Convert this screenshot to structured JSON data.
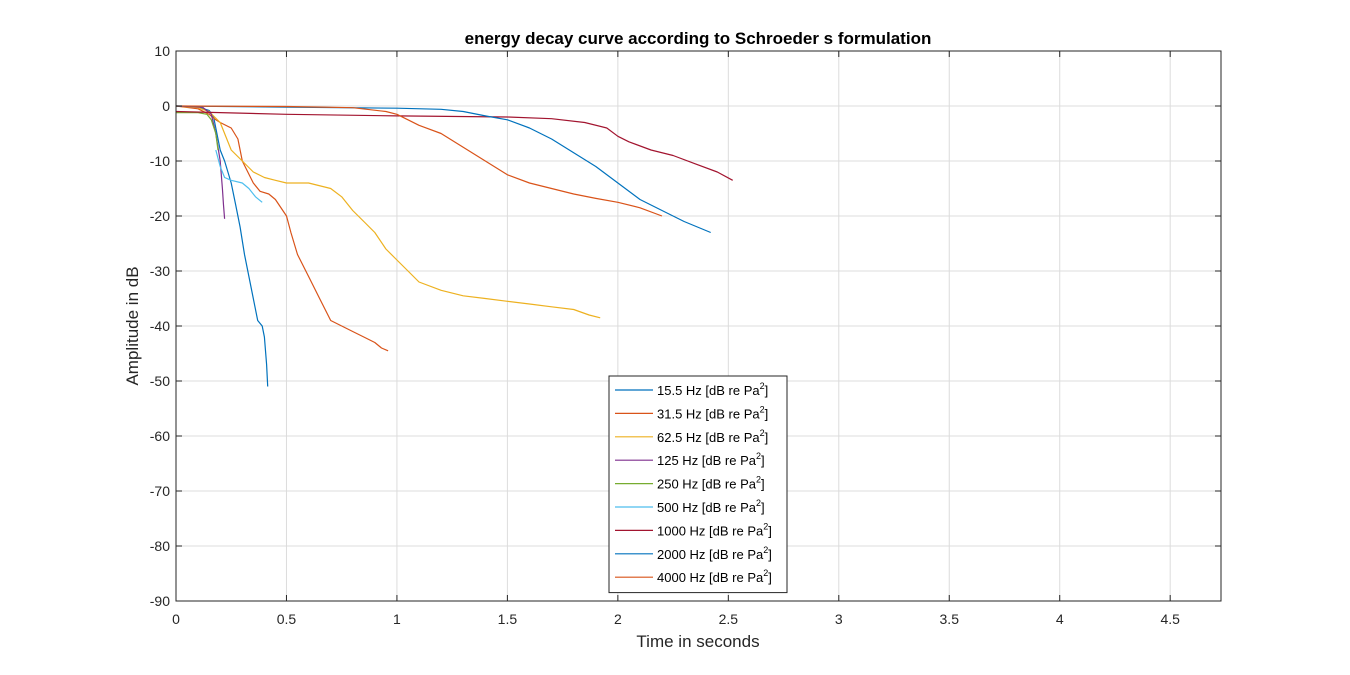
{
  "chart_data": {
    "type": "line",
    "title": "energy decay curve according to Schroeder s formulation",
    "xlabel": "Time in seconds",
    "ylabel": "Amplitude in dB",
    "xlim": [
      0,
      4.73
    ],
    "ylim": [
      -90,
      10
    ],
    "xticks": [
      0,
      0.5,
      1,
      1.5,
      2,
      2.5,
      3,
      3.5,
      4,
      4.5
    ],
    "xtick_labels": [
      "0",
      "0.5",
      "1",
      "1.5",
      "2",
      "2.5",
      "3",
      "3.5",
      "4",
      "4.5"
    ],
    "yticks": [
      10,
      0,
      -10,
      -20,
      -30,
      -40,
      -50,
      -60,
      -70,
      -80,
      -90
    ],
    "ytick_labels": [
      "10",
      "0",
      "-10",
      "-20",
      "-30",
      "-40",
      "-50",
      "-60",
      "-70",
      "-80",
      "-90"
    ],
    "grid": true,
    "legend_position": "bottom-center",
    "legend_suffix": "2",
    "series": [
      {
        "name": "15.5 Hz [dB re Pa",
        "color": "#0072BD",
        "x": [
          0,
          0.1,
          0.15,
          0.17,
          0.18,
          0.19,
          0.2,
          0.22,
          0.25,
          0.27,
          0.29,
          0.31,
          0.33,
          0.35,
          0.37,
          0.39,
          0.4,
          0.41,
          0.415
        ],
        "y": [
          0,
          -0.2,
          -0.8,
          -2,
          -4,
          -6,
          -8,
          -10,
          -14,
          -18,
          -22,
          -27,
          -31,
          -35,
          -39,
          -40,
          -42,
          -47,
          -51
        ]
      },
      {
        "name": "31.5 Hz [dB re Pa",
        "color": "#D95319",
        "x": [
          0,
          0.1,
          0.15,
          0.18,
          0.2,
          0.25,
          0.28,
          0.3,
          0.35,
          0.38,
          0.42,
          0.45,
          0.5,
          0.52,
          0.55,
          0.6,
          0.65,
          0.7,
          0.75,
          0.8,
          0.85,
          0.9,
          0.93,
          0.96
        ],
        "y": [
          0,
          -0.5,
          -1.5,
          -2.5,
          -3,
          -4,
          -6,
          -10,
          -14,
          -15.5,
          -16,
          -17,
          -20,
          -23,
          -27,
          -31,
          -35,
          -39,
          -40,
          -41,
          -42,
          -43,
          -44,
          -44.5
        ]
      },
      {
        "name": "62.5 Hz [dB re Pa",
        "color": "#EDB120",
        "x": [
          0,
          0.1,
          0.15,
          0.2,
          0.25,
          0.3,
          0.35,
          0.4,
          0.45,
          0.5,
          0.6,
          0.7,
          0.75,
          0.8,
          0.85,
          0.9,
          0.95,
          1.0,
          1.05,
          1.1,
          1.2,
          1.3,
          1.4,
          1.5,
          1.6,
          1.7,
          1.8,
          1.87,
          1.92
        ],
        "y": [
          0,
          -0.3,
          -1,
          -3,
          -8,
          -10,
          -12,
          -13,
          -13.5,
          -14,
          -14,
          -15,
          -16.5,
          -19,
          -21,
          -23,
          -26,
          -28,
          -30,
          -32,
          -33.5,
          -34.5,
          -35,
          -35.5,
          -36,
          -36.5,
          -37,
          -38,
          -38.5
        ]
      },
      {
        "name": "125 Hz [dB re Pa",
        "color": "#7E2F8E",
        "x": [
          0,
          0.12,
          0.16,
          0.18,
          0.2,
          0.21,
          0.215,
          0.22
        ],
        "y": [
          0,
          -0.2,
          -1.5,
          -5,
          -10,
          -15,
          -18,
          -20.5
        ]
      },
      {
        "name": "250 Hz [dB re Pa",
        "color": "#77AC30",
        "x": [
          0,
          0.1,
          0.14,
          0.16,
          0.18,
          0.19
        ],
        "y": [
          -1.2,
          -1.2,
          -1.5,
          -2.5,
          -5,
          -8
        ]
      },
      {
        "name": "500 Hz [dB re Pa",
        "color": "#4DBEEE",
        "x": [
          0.18,
          0.2,
          0.22,
          0.25,
          0.3,
          0.33,
          0.36,
          0.39
        ],
        "y": [
          -8,
          -11,
          -13,
          -13.5,
          -14,
          -15,
          -16.5,
          -17.5
        ]
      },
      {
        "name": "1000 Hz [dB re Pa",
        "color": "#A2142F",
        "x": [
          0,
          0.2,
          0.5,
          1.0,
          1.5,
          1.7,
          1.85,
          1.95,
          2.0,
          2.05,
          2.15,
          2.25,
          2.35,
          2.45,
          2.52
        ],
        "y": [
          -1,
          -1.2,
          -1.5,
          -1.8,
          -2,
          -2.3,
          -3,
          -4,
          -5.5,
          -6.5,
          -8,
          -9,
          -10.5,
          -12,
          -13.5
        ]
      },
      {
        "name": "2000 Hz [dB re Pa",
        "color": "#0072BD",
        "x": [
          0,
          0.5,
          1.0,
          1.2,
          1.3,
          1.4,
          1.5,
          1.6,
          1.7,
          1.8,
          1.9,
          2.0,
          2.1,
          2.2,
          2.3,
          2.42
        ],
        "y": [
          0,
          -0.2,
          -0.4,
          -0.6,
          -1,
          -1.8,
          -2.5,
          -4,
          -6,
          -8.5,
          -11,
          -14,
          -17,
          -19,
          -21,
          -23
        ]
      },
      {
        "name": "4000 Hz [dB re Pa",
        "color": "#D95319",
        "x": [
          0,
          0.5,
          0.8,
          0.95,
          1.0,
          1.05,
          1.1,
          1.2,
          1.3,
          1.4,
          1.5,
          1.6,
          1.7,
          1.8,
          1.9,
          2.0,
          2.1,
          2.2
        ],
        "y": [
          0,
          -0.1,
          -0.3,
          -1,
          -1.5,
          -2.5,
          -3.5,
          -5,
          -7.5,
          -10,
          -12.5,
          -14,
          -15,
          -16,
          -16.8,
          -17.5,
          -18.5,
          -20
        ]
      }
    ]
  }
}
